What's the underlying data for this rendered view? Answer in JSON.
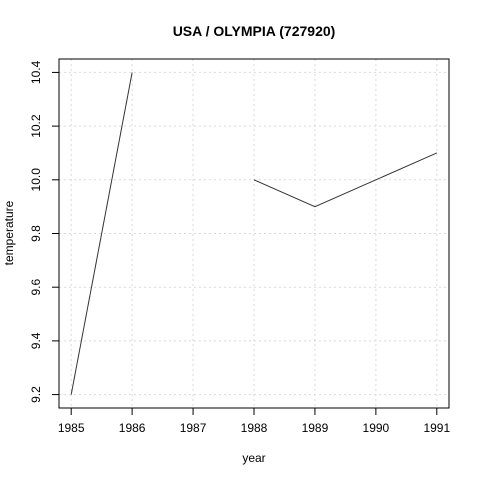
{
  "chart_data": {
    "type": "line",
    "title": "USA / OLYMPIA (727920)",
    "xlabel": "year",
    "ylabel": "temperature",
    "xlim": [
      1984.8,
      1991.2
    ],
    "ylim": [
      9.15,
      10.45
    ],
    "x_ticks": [
      1985,
      1986,
      1987,
      1988,
      1989,
      1990,
      1991
    ],
    "y_ticks": [
      9.2,
      9.4,
      9.6,
      9.8,
      10.0,
      10.2,
      10.4
    ],
    "y_tick_labels": [
      "9.2",
      "9.4",
      "9.6",
      "9.8",
      "10.0",
      "10.2",
      "10.4"
    ],
    "grid": true,
    "series": [
      {
        "segments": [
          [
            [
              1985,
              9.2
            ],
            [
              1986,
              10.4
            ]
          ],
          [
            [
              1988,
              10.0
            ],
            [
              1989,
              9.9
            ],
            [
              1990,
              10.0
            ],
            [
              1991,
              10.1
            ]
          ]
        ]
      }
    ],
    "colors": {
      "line": "#333333",
      "grid": "#d9d9d9",
      "axis": "#000000"
    }
  }
}
